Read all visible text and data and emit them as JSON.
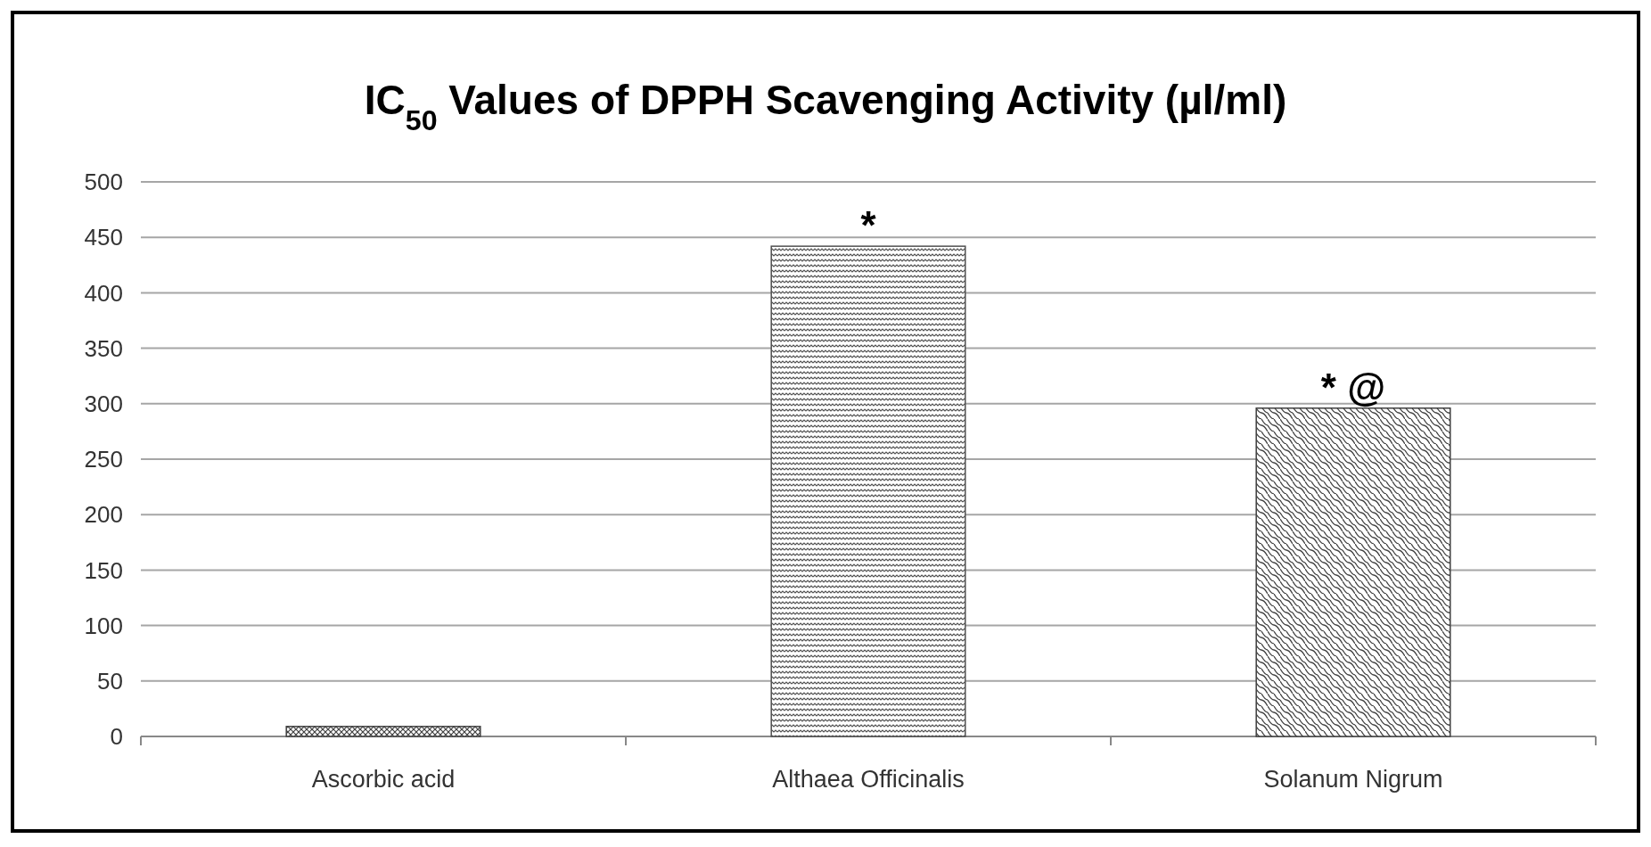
{
  "chart_data": {
    "type": "bar",
    "title": "IC$_{50}$ Values of DPPH Scavenging Activity (µl/ml)",
    "categories": [
      "Ascorbic acid",
      "Althaea Officinalis",
      "Solanum Nigrum"
    ],
    "values": [
      9,
      442,
      296
    ],
    "colors": [
      "#404040",
      "#505050",
      "#404040"
    ],
    "ylim": [
      0,
      500
    ],
    "yticks": [
      0,
      50,
      100,
      150,
      200,
      250,
      300,
      350,
      400,
      450,
      500
    ],
    "grid": "y",
    "annotations": [
      {
        "text": "*",
        "x": "Althaea Officinalis",
        "y": 442
      },
      {
        "text": "* @",
        "x": "Solanum Nigrum",
        "y": 296
      }
    ]
  }
}
